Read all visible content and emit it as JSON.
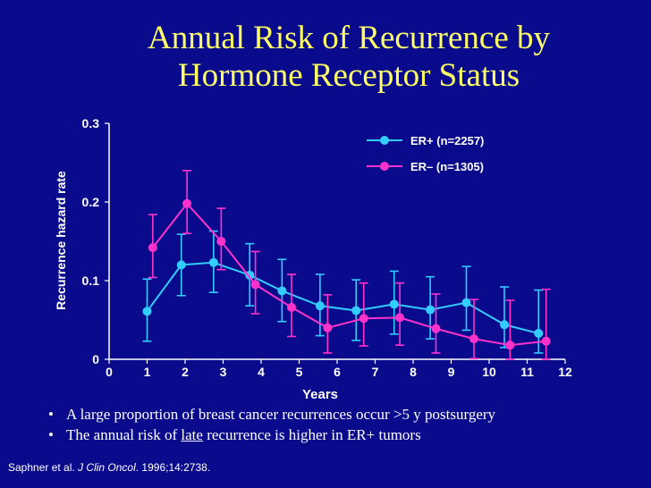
{
  "slide": {
    "title_line1": "Annual Risk of Recurrence by",
    "title_line2": "Hormone Receptor Status"
  },
  "bullets": {
    "b1": "A large proportion of breast cancer recurrences occur >5 y postsurgery",
    "b2_pre": "The annual risk of ",
    "b2_underlined": "late",
    "b2_post": " recurrence is higher in ER+ tumors",
    "bullet_glyph": "•"
  },
  "citation": {
    "authors": "Saphner et al. ",
    "journal": "J Clin Oncol",
    "details": ". 1996;14:2738."
  },
  "colors": {
    "background": "#0a0a8c",
    "title": "#ffff66",
    "er_pos": "#33ccff",
    "er_neg": "#ff33cc",
    "axis": "#ffffff"
  },
  "chart_data": {
    "type": "line",
    "title": "",
    "xlabel": "Years",
    "ylabel": "Recurrence hazard rate",
    "xlim": [
      0,
      12
    ],
    "ylim": [
      0,
      0.3
    ],
    "xticks": [
      0,
      1,
      2,
      3,
      4,
      5,
      6,
      7,
      8,
      9,
      10,
      11,
      12
    ],
    "yticks": [
      0,
      0.1,
      0.2,
      0.3
    ],
    "ytick_labels": [
      "0",
      "0.1",
      "0.2",
      "0.3"
    ],
    "legend_position": "top-right",
    "series": [
      {
        "name": "ER+ (n=2257)",
        "color": "#33ccff",
        "x": [
          1,
          1.9,
          2.75,
          3.7,
          4.55,
          5.55,
          6.5,
          7.5,
          8.45,
          9.4,
          10.4,
          11.3
        ],
        "y": [
          0.061,
          0.12,
          0.123,
          0.107,
          0.087,
          0.068,
          0.062,
          0.07,
          0.063,
          0.072,
          0.044,
          0.033
        ],
        "err_low": [
          0.023,
          0.081,
          0.085,
          0.068,
          0.048,
          0.03,
          0.024,
          0.032,
          0.026,
          0.037,
          0.015,
          0.008
        ],
        "err_high": [
          0.102,
          0.159,
          0.163,
          0.147,
          0.127,
          0.108,
          0.101,
          0.112,
          0.105,
          0.118,
          0.092,
          0.088
        ]
      },
      {
        "name": "ER– (n=1305)",
        "color": "#ff33cc",
        "x": [
          1.15,
          2.05,
          2.95,
          3.85,
          4.8,
          5.75,
          6.7,
          7.65,
          8.6,
          9.6,
          10.55,
          11.5
        ],
        "y": [
          0.142,
          0.198,
          0.15,
          0.095,
          0.066,
          0.04,
          0.052,
          0.053,
          0.039,
          0.026,
          0.018,
          0.023
        ],
        "err_low": [
          0.104,
          0.16,
          0.114,
          0.058,
          0.029,
          0.008,
          0.017,
          0.018,
          0.008,
          0.001,
          0.0,
          0.0
        ],
        "err_high": [
          0.184,
          0.24,
          0.192,
          0.137,
          0.108,
          0.082,
          0.097,
          0.097,
          0.083,
          0.076,
          0.075,
          0.089
        ]
      }
    ]
  }
}
